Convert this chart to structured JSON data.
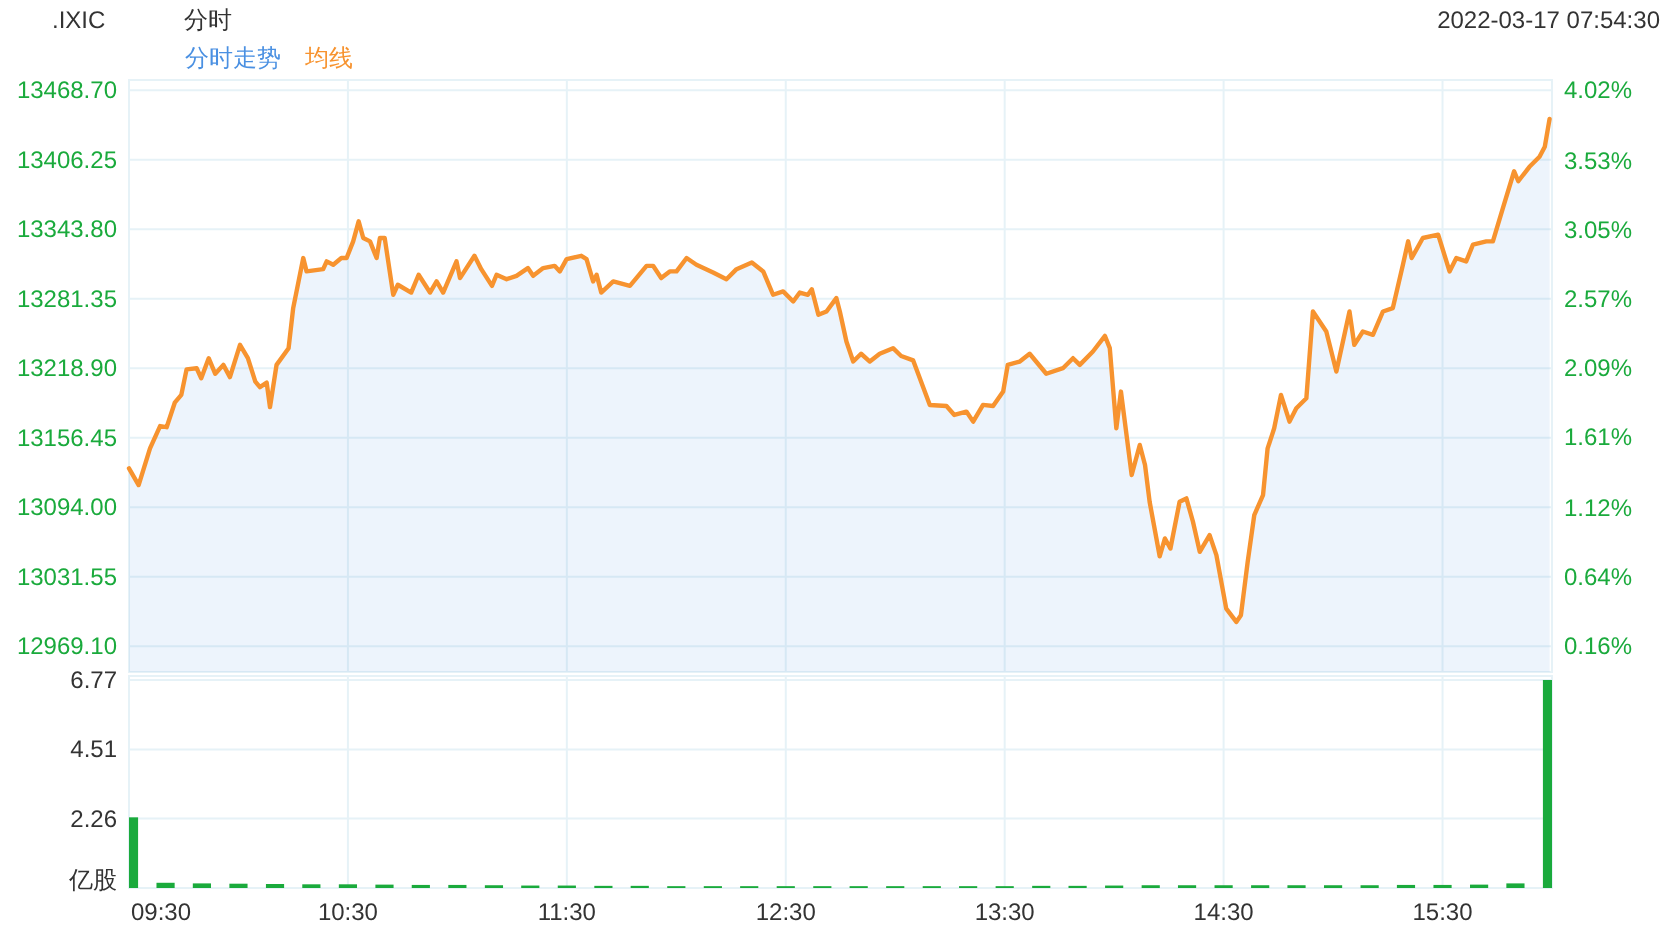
{
  "chart_data": [
    {
      "type": "line",
      "title": ".IXIC",
      "subtitle": "分时",
      "annotations": [
        "2022-03-17 07:54:30"
      ],
      "legend": "top left",
      "grid": true,
      "tick_labels": "y",
      "xlim": [
        9.5,
        16
      ],
      "xticks": [
        {
          "value": 9.5,
          "label": null
        },
        {
          "value": 10.5,
          "label": null
        },
        {
          "value": 11.5,
          "label": null
        },
        {
          "value": 12.5,
          "label": null
        },
        {
          "value": 13.5,
          "label": null
        },
        {
          "value": 14.5,
          "label": null
        },
        {
          "value": 15.5,
          "label": null
        }
      ],
      "ylim": [
        12946,
        13478
      ],
      "yticks": [
        {
          "value": 12969.1,
          "label": "12969.10"
        },
        13031.55,
        {
          "value": 13094,
          "label": "13094.00"
        },
        13156.45,
        {
          "value": 13218.9,
          "label": "13218.90"
        },
        13281.35,
        {
          "value": 13343.8,
          "label": "13343.80"
        },
        13406.25,
        {
          "value": 13468.7,
          "label": "13468.70"
        }
      ],
      "y2lim": [
        -0.02,
        4.09
      ],
      "y2ticks": [
        {
          "value": 0.16,
          "label": "0.16%"
        },
        {
          "value": 0.64,
          "label": "0.64%"
        },
        {
          "value": 1.12,
          "label": "1.12%"
        },
        {
          "value": 1.61,
          "label": "1.61%"
        },
        {
          "value": 2.09,
          "label": "2.09%"
        },
        {
          "value": 2.57,
          "label": "2.57%"
        },
        {
          "value": 3.05,
          "label": "3.05%"
        },
        {
          "value": 3.53,
          "label": "3.53%"
        },
        {
          "value": 4.02,
          "label": "4.02%"
        }
      ],
      "x": [
        9.5,
        9.544,
        9.596,
        9.642,
        9.672,
        9.709,
        9.739,
        9.763,
        9.809,
        9.83,
        9.864,
        9.894,
        9.931,
        9.961,
        10.007,
        10.043,
        10.077,
        10.098,
        10.129,
        10.144,
        10.174,
        10.229,
        10.25,
        10.296,
        10.311,
        10.387,
        10.403,
        10.433,
        10.47,
        10.494,
        10.524,
        10.549,
        10.57,
        10.601,
        10.631,
        10.646,
        10.668,
        10.707,
        10.728,
        10.789,
        10.823,
        10.875,
        10.905,
        10.935,
        10.996,
        11.012,
        11.078,
        11.109,
        11.158,
        11.179,
        11.225,
        11.27,
        11.322,
        11.346,
        11.392,
        11.444,
        11.468,
        11.499,
        11.566,
        11.59,
        11.62,
        11.636,
        11.657,
        11.712,
        11.788,
        11.864,
        11.894,
        11.931,
        11.97,
        12.001,
        12.047,
        12.092,
        12.168,
        12.229,
        12.275,
        12.345,
        12.397,
        12.442,
        12.488,
        12.534,
        12.564,
        12.601,
        12.619,
        12.649,
        12.686,
        12.731,
        12.747,
        12.777,
        12.808,
        12.844,
        12.884,
        12.929,
        12.99,
        13.027,
        13.082,
        13.158,
        13.234,
        13.27,
        13.325,
        13.356,
        13.401,
        13.447,
        13.493,
        13.514,
        13.569,
        13.614,
        13.69,
        13.766,
        13.812,
        13.843,
        13.903,
        13.958,
        13.98,
        14.01,
        14.031,
        14.08,
        14.117,
        14.141,
        14.162,
        14.208,
        14.232,
        14.257,
        14.299,
        14.33,
        14.36,
        14.391,
        14.436,
        14.467,
        14.512,
        14.558,
        14.579,
        14.61,
        14.64,
        14.68,
        14.701,
        14.731,
        14.762,
        14.801,
        14.832,
        14.878,
        14.908,
        14.969,
        15.015,
        15.075,
        15.097,
        15.136,
        15.182,
        15.228,
        15.273,
        15.319,
        15.343,
        15.359,
        15.41,
        15.48,
        15.532,
        15.563,
        15.608,
        15.639,
        15.7,
        15.73,
        15.776,
        15.827,
        15.846,
        15.897,
        15.943,
        15.967,
        15.989
      ],
      "series": [
        {
          "name": "分时走势",
          "type": "area",
          "color": "#4a90e2",
          "values": [
            13129,
            13114,
            13147,
            13167,
            13166,
            13188,
            13195,
            13218,
            13219,
            13210,
            13228,
            13214,
            13222,
            13211,
            13240,
            13228,
            13207,
            13202,
            13206,
            13184,
            13222,
            13237,
            13273,
            13318,
            13306,
            13308,
            13315,
            13312,
            13318,
            13318,
            13333,
            13351,
            13336,
            13333,
            13318,
            13336,
            13336,
            13285,
            13294,
            13287,
            13303,
            13287,
            13297,
            13287,
            13315,
            13300,
            13320,
            13308,
            13293,
            13303,
            13299,
            13302,
            13309,
            13302,
            13309,
            13311,
            13306,
            13317,
            13320,
            13317,
            13297,
            13303,
            13287,
            13297,
            13293,
            13311,
            13311,
            13300,
            13306,
            13306,
            13318,
            13312,
            13305,
            13299,
            13308,
            13314,
            13306,
            13285,
            13288,
            13279,
            13287,
            13285,
            13290,
            13267,
            13270,
            13282,
            13270,
            13243,
            13225,
            13232,
            13225,
            13232,
            13237,
            13230,
            13226,
            13186,
            13185,
            13177,
            13180,
            13171,
            13186,
            13185,
            13198,
            13222,
            13225,
            13232,
            13214,
            13219,
            13228,
            13222,
            13234,
            13248,
            13237,
            13165,
            13198,
            13123,
            13150,
            13132,
            13099,
            13050,
            13066,
            13057,
            13099,
            13102,
            13081,
            13054,
            13069,
            13051,
            13003,
            12991,
            12997,
            13045,
            13087,
            13105,
            13147,
            13165,
            13195,
            13171,
            13183,
            13192,
            13270,
            13252,
            13216,
            13270,
            13240,
            13252,
            13249,
            13270,
            13273,
            13312,
            13333,
            13318,
            13336,
            13339,
            13306,
            13318,
            13315,
            13330,
            13333,
            13333,
            13363,
            13396,
            13387,
            13400,
            13409,
            13418,
            13443
          ]
        },
        {
          "name": "均线",
          "type": "line",
          "color": "#f7932f",
          "values": [
            13129,
            13114,
            13147,
            13167,
            13166,
            13188,
            13195,
            13218,
            13219,
            13210,
            13228,
            13214,
            13222,
            13211,
            13240,
            13228,
            13207,
            13202,
            13206,
            13184,
            13222,
            13237,
            13273,
            13318,
            13306,
            13308,
            13315,
            13312,
            13318,
            13318,
            13333,
            13351,
            13336,
            13333,
            13318,
            13336,
            13336,
            13285,
            13294,
            13287,
            13303,
            13287,
            13297,
            13287,
            13315,
            13300,
            13320,
            13308,
            13293,
            13303,
            13299,
            13302,
            13309,
            13302,
            13309,
            13311,
            13306,
            13317,
            13320,
            13317,
            13297,
            13303,
            13287,
            13297,
            13293,
            13311,
            13311,
            13300,
            13306,
            13306,
            13318,
            13312,
            13305,
            13299,
            13308,
            13314,
            13306,
            13285,
            13288,
            13279,
            13287,
            13285,
            13290,
            13267,
            13270,
            13282,
            13270,
            13243,
            13225,
            13232,
            13225,
            13232,
            13237,
            13230,
            13226,
            13186,
            13185,
            13177,
            13180,
            13171,
            13186,
            13185,
            13198,
            13222,
            13225,
            13232,
            13214,
            13219,
            13228,
            13222,
            13234,
            13248,
            13237,
            13165,
            13198,
            13123,
            13150,
            13132,
            13099,
            13050,
            13066,
            13057,
            13099,
            13102,
            13081,
            13054,
            13069,
            13051,
            13003,
            12991,
            12997,
            13045,
            13087,
            13105,
            13147,
            13165,
            13195,
            13171,
            13183,
            13192,
            13270,
            13252,
            13216,
            13270,
            13240,
            13252,
            13249,
            13270,
            13273,
            13312,
            13333,
            13318,
            13336,
            13339,
            13306,
            13318,
            13315,
            13330,
            13333,
            13333,
            13363,
            13396,
            13387,
            13400,
            13409,
            13418,
            13443
          ]
        }
      ]
    },
    {
      "type": "bar",
      "grid": true,
      "color": "#1aaa3c",
      "xlim": [
        9.5,
        16
      ],
      "xticks": [
        {
          "value": 9.5,
          "label": "09:30"
        },
        {
          "value": 10.5,
          "label": "10:30"
        },
        {
          "value": 11.5,
          "label": "11:30"
        },
        {
          "value": 12.5,
          "label": "12:30"
        },
        {
          "value": 13.5,
          "label": "13:30"
        },
        {
          "value": 14.5,
          "label": "14:30"
        },
        {
          "value": 15.5,
          "label": "15:30"
        }
      ],
      "ylim": [
        0,
        6.9
      ],
      "yticks": [
        {
          "value": 0,
          "label": "亿股"
        },
        2.26,
        4.51,
        6.77
      ],
      "x": [
        9.5,
        9.667,
        9.833,
        10,
        10.167,
        10.333,
        10.5,
        10.667,
        10.833,
        11,
        11.167,
        11.333,
        11.5,
        11.667,
        11.833,
        12,
        12.167,
        12.333,
        12.5,
        12.667,
        12.833,
        13,
        13.167,
        13.333,
        13.5,
        13.667,
        13.833,
        14,
        14.167,
        14.333,
        14.5,
        14.667,
        14.833,
        15,
        15.167,
        15.333,
        15.5,
        15.667,
        15.833,
        16
      ],
      "values": [
        2.3,
        0.17,
        0.15,
        0.14,
        0.13,
        0.12,
        0.12,
        0.11,
        0.1,
        0.1,
        0.09,
        0.08,
        0.08,
        0.07,
        0.07,
        0.06,
        0.06,
        0.06,
        0.06,
        0.06,
        0.06,
        0.06,
        0.06,
        0.06,
        0.06,
        0.07,
        0.07,
        0.08,
        0.09,
        0.09,
        0.09,
        0.09,
        0.09,
        0.09,
        0.09,
        0.1,
        0.1,
        0.11,
        0.15,
        6.77
      ]
    }
  ]
}
